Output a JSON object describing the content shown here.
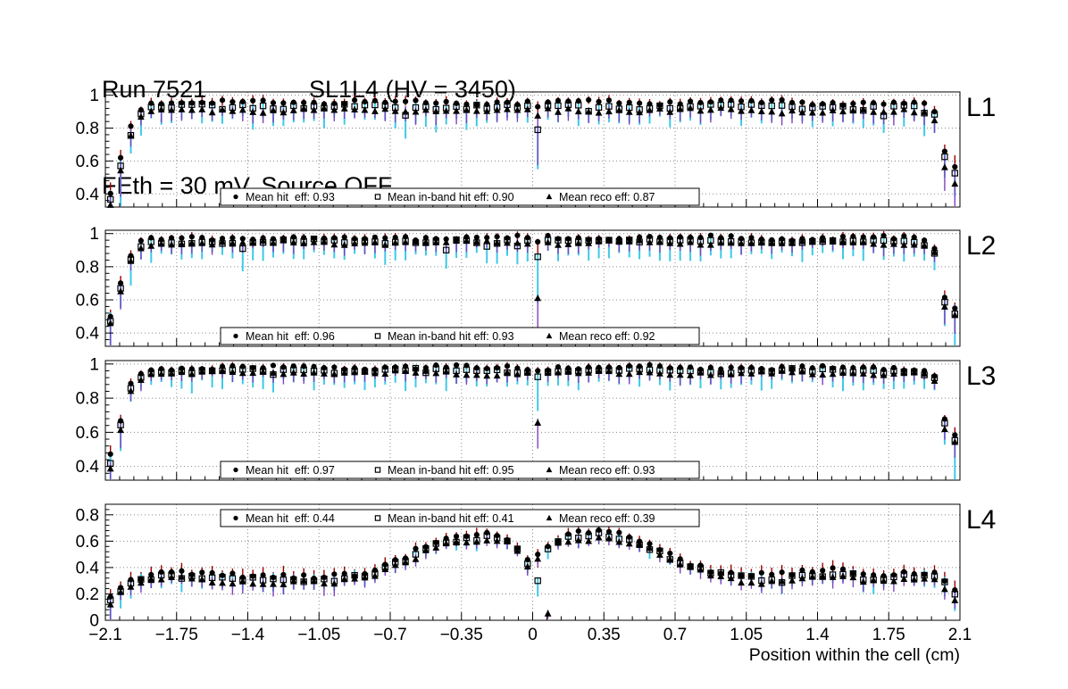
{
  "header": {
    "run_label": "Run 7521",
    "chamber_label": "SL1L4 (HV = 3450)",
    "subtitle": "FEth = 30 mV, Source OFF"
  },
  "chart_data": {
    "type": "scatter",
    "title": "Run 7521  SL1L4 (HV = 3450)  FEth = 30 mV, Source OFF",
    "xlabel": "Position within the cell (cm)",
    "xlim": [
      -2.1,
      2.1
    ],
    "xticks": [
      -2.1,
      -1.75,
      -1.4,
      -1.05,
      -0.7,
      -0.35,
      0,
      0.35,
      0.7,
      1.05,
      1.4,
      1.75,
      2.1
    ],
    "xtick_labels": [
      "−2.1",
      "−1.75",
      "−1.4",
      "−1.05",
      "−0.7",
      "−0.35",
      "0",
      "0.35",
      "0.7",
      "1.05",
      "1.4",
      "1.75",
      "2.1"
    ],
    "point_spacing_cm": 0.05,
    "grid": true,
    "series_styles": {
      "hit": {
        "marker": "filled-circle",
        "marker_color": "#000000",
        "error_color": "#990000"
      },
      "in_band": {
        "marker": "open-square",
        "marker_color": "#000000",
        "error_color": "#3ec9e6"
      },
      "reco": {
        "marker": "filled-triangle",
        "marker_color": "#000000",
        "error_color": "#8040c0"
      }
    },
    "panels": [
      {
        "label": "L1",
        "ylim": [
          0.32,
          1.02
        ],
        "yticks": [
          0.4,
          0.6,
          0.8,
          1
        ],
        "ytick_labels": [
          "0.4",
          "0.6",
          "0.8",
          "1"
        ],
        "legend_position": "bottom",
        "means": {
          "hit": 0.93,
          "in_band": 0.9,
          "reco": 0.87
        },
        "legend": [
          {
            "marker": "filled-circle",
            "label": "Mean hit  eff: 0.93"
          },
          {
            "marker": "open-square",
            "label": "Mean in-band hit eff: 0.90"
          },
          {
            "marker": "filled-triangle",
            "label": "Mean reco eff: 0.87"
          }
        ],
        "noise": 0.012,
        "err_ref": 0.93,
        "profile": [
          [
            -2.075,
            0.42
          ],
          [
            -2.025,
            0.63
          ],
          [
            -1.975,
            0.81
          ],
          [
            -1.925,
            0.91
          ],
          [
            -1.875,
            0.945
          ],
          [
            -1.7,
            0.955
          ],
          [
            -1.4,
            0.96
          ],
          [
            -1.1,
            0.955
          ],
          [
            -0.8,
            0.96
          ],
          [
            -0.5,
            0.955
          ],
          [
            -0.2,
            0.96
          ],
          [
            0,
            0.955
          ],
          [
            0.3,
            0.96
          ],
          [
            0.6,
            0.955
          ],
          [
            0.9,
            0.96
          ],
          [
            1.2,
            0.955
          ],
          [
            1.5,
            0.955
          ],
          [
            1.8,
            0.95
          ],
          [
            1.9,
            0.945
          ],
          [
            1.95,
            0.925
          ],
          [
            2.0,
            0.87
          ],
          [
            2.025,
            0.66
          ],
          [
            2.075,
            0.56
          ]
        ],
        "series": [
          {
            "key": "hit",
            "offset": 0,
            "err_up": 0.025,
            "err_down": 0.025,
            "overrides": [
              [
                0.025,
                0.93,
                0.08
              ]
            ]
          },
          {
            "key": "in_band",
            "offset": -0.026,
            "err_up": 0.02,
            "err_down": 0.09,
            "overrides": [
              [
                0.025,
                0.79,
                0.24
              ]
            ]
          },
          {
            "key": "reco",
            "offset": -0.05,
            "err_up": 0.025,
            "err_down": 0.05,
            "overrides": [
              [
                0.025,
                0.875,
                0.3
              ]
            ]
          }
        ]
      },
      {
        "label": "L2",
        "ylim": [
          0.32,
          1.02
        ],
        "yticks": [
          0.4,
          0.6,
          0.8,
          1
        ],
        "ytick_labels": [
          "0.4",
          "0.6",
          "0.8",
          "1"
        ],
        "legend_position": "bottom",
        "means": {
          "hit": 0.96,
          "in_band": 0.93,
          "reco": 0.92
        },
        "legend": [
          {
            "marker": "filled-circle",
            "label": "Mean hit  eff: 0.96"
          },
          {
            "marker": "open-square",
            "label": "Mean in-band hit eff: 0.93"
          },
          {
            "marker": "filled-triangle",
            "label": "Mean reco eff: 0.92"
          }
        ],
        "noise": 0.01,
        "err_ref": 0.95,
        "profile": [
          [
            -2.075,
            0.5
          ],
          [
            -2.025,
            0.7
          ],
          [
            -1.975,
            0.87
          ],
          [
            -1.925,
            0.945
          ],
          [
            -1.875,
            0.965
          ],
          [
            -1.5,
            0.975
          ],
          [
            -1.0,
            0.972
          ],
          [
            -0.5,
            0.976
          ],
          [
            0,
            0.974
          ],
          [
            0.5,
            0.976
          ],
          [
            1.0,
            0.973
          ],
          [
            1.5,
            0.974
          ],
          [
            1.85,
            0.97
          ],
          [
            1.95,
            0.955
          ],
          [
            2.0,
            0.88
          ],
          [
            2.025,
            0.62
          ],
          [
            2.075,
            0.56
          ]
        ],
        "series": [
          {
            "key": "hit",
            "offset": 0,
            "err_up": 0.02,
            "err_down": 0.02,
            "overrides": [
              [
                0.025,
                0.95,
                0.08
              ]
            ]
          },
          {
            "key": "in_band",
            "offset": -0.02,
            "err_up": 0.018,
            "err_down": 0.085,
            "overrides": [
              [
                0.025,
                0.86,
                0.28
              ]
            ]
          },
          {
            "key": "reco",
            "offset": -0.03,
            "err_up": 0.02,
            "err_down": 0.045,
            "overrides": [
              [
                0.025,
                0.61,
                0.18
              ]
            ]
          }
        ]
      },
      {
        "label": "L3",
        "ylim": [
          0.32,
          1.02
        ],
        "yticks": [
          0.4,
          0.6,
          0.8,
          1
        ],
        "ytick_labels": [
          "0.4",
          "0.6",
          "0.8",
          "1"
        ],
        "legend_position": "bottom",
        "means": {
          "hit": 0.97,
          "in_band": 0.95,
          "reco": 0.93
        },
        "legend": [
          {
            "marker": "filled-circle",
            "label": "Mean hit  eff: 0.97"
          },
          {
            "marker": "open-square",
            "label": "Mean in-band hit eff: 0.95"
          },
          {
            "marker": "filled-triangle",
            "label": "Mean reco eff: 0.93"
          }
        ],
        "noise": 0.01,
        "err_ref": 0.955,
        "profile": [
          [
            -2.075,
            0.46
          ],
          [
            -2.025,
            0.67
          ],
          [
            -1.975,
            0.88
          ],
          [
            -1.925,
            0.95
          ],
          [
            -1.875,
            0.972
          ],
          [
            -1.5,
            0.979
          ],
          [
            -1.0,
            0.978
          ],
          [
            -0.5,
            0.98
          ],
          [
            0,
            0.978
          ],
          [
            0.5,
            0.98
          ],
          [
            1.0,
            0.978
          ],
          [
            1.5,
            0.978
          ],
          [
            1.85,
            0.975
          ],
          [
            1.95,
            0.962
          ],
          [
            2.0,
            0.9
          ],
          [
            2.025,
            0.68
          ],
          [
            2.075,
            0.59
          ]
        ],
        "series": [
          {
            "key": "hit",
            "offset": 0,
            "err_up": 0.018,
            "err_down": 0.018,
            "overrides": [
              [
                0.025,
                0.96,
                0.06
              ]
            ]
          },
          {
            "key": "in_band",
            "offset": -0.018,
            "err_up": 0.016,
            "err_down": 0.08,
            "overrides": [
              [
                0.025,
                0.925,
                0.2
              ]
            ]
          },
          {
            "key": "reco",
            "offset": -0.033,
            "err_up": 0.018,
            "err_down": 0.04,
            "overrides": [
              [
                0.025,
                0.655,
                0.15
              ]
            ]
          }
        ]
      },
      {
        "label": "L4",
        "ylim": [
          0,
          0.88
        ],
        "yticks": [
          0,
          0.2,
          0.4,
          0.6,
          0.8
        ],
        "ytick_labels": [
          "0",
          "0.2",
          "0.4",
          "0.6",
          "0.8"
        ],
        "legend_position": "top",
        "means": {
          "hit": 0.44,
          "in_band": 0.41,
          "reco": 0.39
        },
        "legend": [
          {
            "marker": "filled-circle",
            "label": "Mean hit  eff: 0.44"
          },
          {
            "marker": "open-square",
            "label": "Mean in-band hit eff: 0.41"
          },
          {
            "marker": "filled-triangle",
            "label": "Mean reco eff: 0.39"
          }
        ],
        "noise": 0.018,
        "err_ref": 0.42,
        "profile": [
          [
            -2.075,
            0.2
          ],
          [
            -2.025,
            0.27
          ],
          [
            -1.975,
            0.31
          ],
          [
            -1.9,
            0.34
          ],
          [
            -1.75,
            0.37
          ],
          [
            -1.6,
            0.345
          ],
          [
            -1.45,
            0.335
          ],
          [
            -1.3,
            0.345
          ],
          [
            -1.15,
            0.34
          ],
          [
            -1.0,
            0.335
          ],
          [
            -0.9,
            0.345
          ],
          [
            -0.8,
            0.375
          ],
          [
            -0.7,
            0.43
          ],
          [
            -0.6,
            0.5
          ],
          [
            -0.5,
            0.58
          ],
          [
            -0.4,
            0.635
          ],
          [
            -0.3,
            0.65
          ],
          [
            -0.2,
            0.655
          ],
          [
            -0.125,
            0.62
          ],
          [
            -0.075,
            0.56
          ],
          [
            -0.025,
            0.46
          ],
          [
            0.025,
            0.5
          ],
          [
            0.075,
            0.575
          ],
          [
            0.15,
            0.63
          ],
          [
            0.25,
            0.66
          ],
          [
            0.35,
            0.67
          ],
          [
            0.45,
            0.655
          ],
          [
            0.55,
            0.6
          ],
          [
            0.65,
            0.52
          ],
          [
            0.75,
            0.45
          ],
          [
            0.85,
            0.39
          ],
          [
            0.95,
            0.36
          ],
          [
            1.1,
            0.34
          ],
          [
            1.25,
            0.35
          ],
          [
            1.4,
            0.37
          ],
          [
            1.5,
            0.4
          ],
          [
            1.6,
            0.355
          ],
          [
            1.75,
            0.345
          ],
          [
            1.9,
            0.36
          ],
          [
            1.975,
            0.35
          ],
          [
            2.025,
            0.3
          ],
          [
            2.075,
            0.23
          ]
        ],
        "series": [
          {
            "key": "hit",
            "offset": 0,
            "err_up": 0.04,
            "err_down": 0.04,
            "overrides": [
              [
                0.025,
                0.5,
                0.1
              ]
            ]
          },
          {
            "key": "in_band",
            "offset": -0.022,
            "err_up": 0.025,
            "err_down": 0.055,
            "overrides": [
              [
                0.025,
                0.3,
                0.12
              ]
            ]
          },
          {
            "key": "reco",
            "offset": -0.042,
            "err_up": 0.03,
            "err_down": 0.045,
            "overrides": [
              [
                0.075,
                0.05,
                0.04
              ]
            ]
          }
        ]
      }
    ]
  }
}
